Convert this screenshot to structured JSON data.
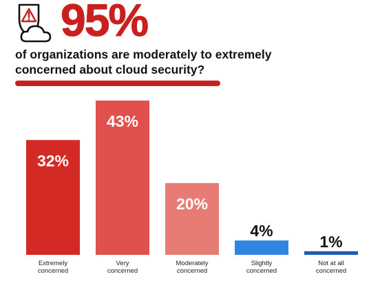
{
  "header": {
    "icon": "shield-warning-cloud-icon",
    "headline": "95%",
    "subheadline": "of organizations are moderately to extremely concerned about cloud security?"
  },
  "colors": {
    "headline": "#c8201f",
    "divider": "#c8201f",
    "icon_stroke": "#111111",
    "icon_alert": "#c8201f"
  },
  "chart_data": {
    "type": "bar",
    "title": "",
    "xlabel": "",
    "ylabel": "",
    "ylim": [
      0,
      43
    ],
    "grid": false,
    "categories": [
      [
        "Extremely",
        "concerned"
      ],
      [
        "Very",
        "concerned"
      ],
      [
        "Moderately",
        "concerned"
      ],
      [
        "Slightly",
        "concerned"
      ],
      [
        "Not at all",
        "concerned"
      ]
    ],
    "values": [
      32,
      43,
      20,
      4,
      1
    ],
    "value_labels": [
      "32%",
      "43%",
      "20%",
      "4%",
      "1%"
    ],
    "bar_colors": [
      "#d42a26",
      "#e0504c",
      "#e77c75",
      "#2f86e2",
      "#1d5cb4"
    ],
    "label_inside": [
      true,
      true,
      true,
      false,
      false
    ]
  }
}
